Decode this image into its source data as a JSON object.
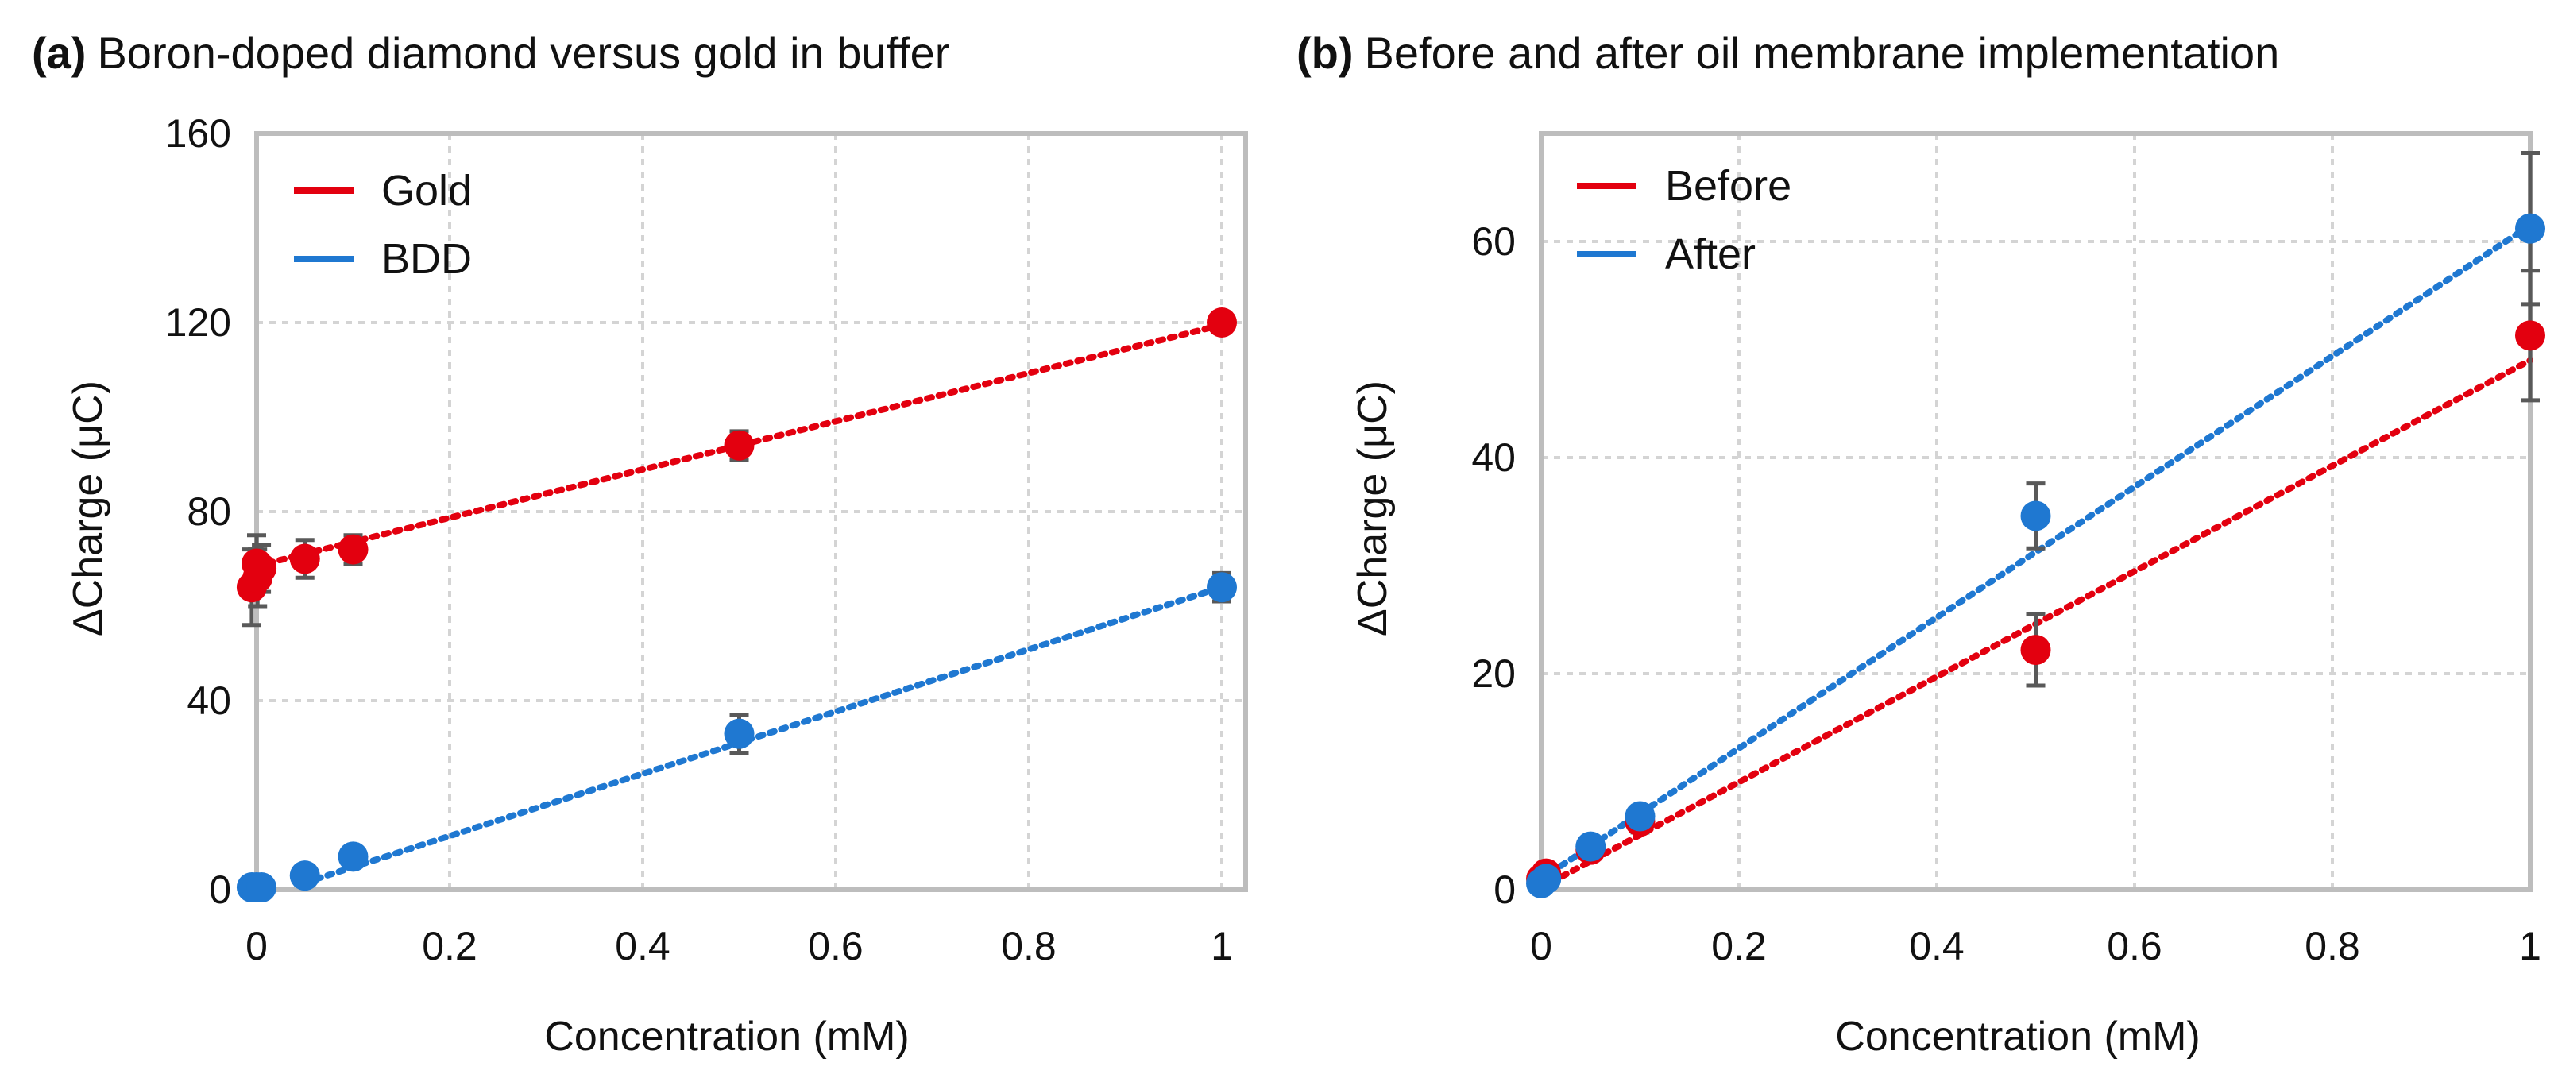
{
  "chart_data": [
    {
      "id": "a",
      "type": "scatter",
      "panel_letter": "(a)",
      "title": "Boron-doped diamond versus gold in buffer",
      "xlabel": "Concentration (mM)",
      "ylabel": "ΔCharge (μC)",
      "xlim": [
        0,
        1
      ],
      "ylim": [
        0,
        160
      ],
      "xticks": [
        0,
        0.2,
        0.4,
        0.6,
        0.8,
        1
      ],
      "xtick_labels": [
        "0",
        "0.2",
        "0.4",
        "0.6",
        "0.8",
        "1"
      ],
      "yticks": [
        0,
        40,
        80,
        120,
        160
      ],
      "ytick_labels": [
        "0",
        "40",
        "80",
        "120",
        "160"
      ],
      "grid": true,
      "legend_position": "top-left",
      "series": [
        {
          "name": "Gold",
          "color": "#e3000f",
          "x": [
            -0.005,
            0,
            0.001,
            0.005,
            0.05,
            0.1,
            0.5,
            1.0
          ],
          "y": [
            64,
            69,
            66,
            68,
            70,
            72,
            94,
            120
          ],
          "err": [
            8,
            6,
            6,
            5,
            4,
            3,
            3,
            1
          ],
          "trend": {
            "x": [
              0,
              1
            ],
            "y": [
              68.5,
              119.5
            ]
          }
        },
        {
          "name": "BDD",
          "color": "#1f78d1",
          "x": [
            -0.005,
            0,
            0.005,
            0.05,
            0.1,
            0.5,
            1.0
          ],
          "y": [
            0.5,
            0.5,
            0.5,
            3,
            7,
            33,
            64
          ],
          "err": [
            0.5,
            0.5,
            0.5,
            1.5,
            1.5,
            4,
            3
          ],
          "trend": {
            "x": [
              0.05,
              1
            ],
            "y": [
              1.5,
              64
            ]
          }
        }
      ]
    },
    {
      "id": "b",
      "type": "scatter",
      "panel_letter": "(b)",
      "title": "Before and after oil membrane implementation",
      "xlabel": "Concentration (mM)",
      "ylabel": "ΔCharge (μC)",
      "xlim": [
        0,
        1
      ],
      "ylim": [
        0,
        70
      ],
      "xticks": [
        0,
        0.2,
        0.4,
        0.6,
        0.8,
        1
      ],
      "xtick_labels": [
        "0",
        "0.2",
        "0.4",
        "0.6",
        "0.8",
        "1"
      ],
      "yticks": [
        0,
        20,
        40,
        60
      ],
      "ytick_labels": [
        "0",
        "20",
        "40",
        "60"
      ],
      "grid": true,
      "legend_position": "top-left",
      "series": [
        {
          "name": "Before",
          "color": "#e3000f",
          "x": [
            0,
            0.005,
            0.05,
            0.1,
            0.5,
            1.0
          ],
          "y": [
            1.0,
            1.5,
            3.7,
            6.3,
            22.2,
            51.3
          ],
          "err": [
            0.5,
            0.5,
            0.5,
            1.0,
            3.3,
            6.0
          ],
          "trend": {
            "x": [
              0,
              1
            ],
            "y": [
              0.2,
              49.0
            ]
          }
        },
        {
          "name": "After",
          "color": "#1f78d1",
          "x": [
            0,
            0.005,
            0.05,
            0.1,
            0.5,
            1.0
          ],
          "y": [
            0.6,
            1.0,
            4.0,
            6.8,
            34.6,
            61.2
          ],
          "err": [
            0.5,
            0.5,
            0.8,
            0.8,
            3.0,
            7.0
          ],
          "trend": {
            "x": [
              0,
              1
            ],
            "y": [
              1.0,
              61.5
            ]
          }
        }
      ]
    }
  ]
}
